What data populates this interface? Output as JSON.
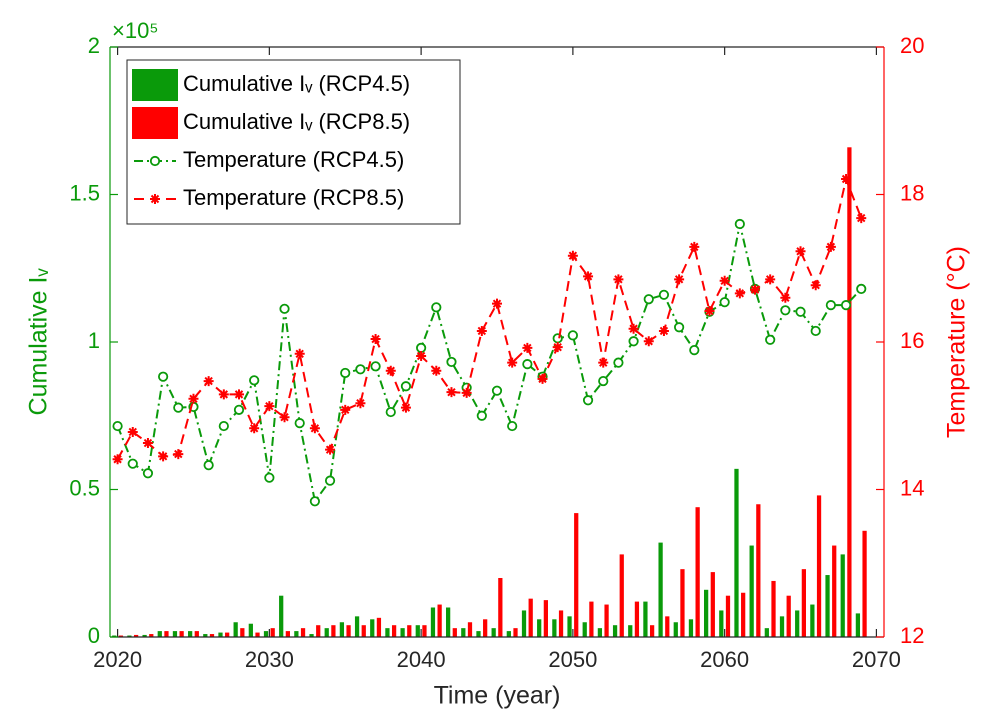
{
  "chart_data": {
    "type": "bar",
    "x_label": "Time (year)",
    "y_label": "Cumulative Iᵥ",
    "y2_label": "Temperature (°C)",
    "y_multiplier": "×10⁵",
    "xlim": [
      2019.5,
      2070.5
    ],
    "xticks": [
      2020,
      2030,
      2040,
      2050,
      2060,
      2070
    ],
    "ylim": [
      0,
      2
    ],
    "yticks": [
      0,
      0.5,
      1,
      1.5,
      2
    ],
    "y2lim": [
      12,
      20
    ],
    "y2ticks": [
      12,
      14,
      16,
      18,
      20
    ],
    "y_color": "#0a9a0a",
    "y2_color": "#ff0000",
    "legend": "upper left",
    "x": [
      2020,
      2021,
      2022,
      2023,
      2024,
      2025,
      2026,
      2027,
      2028,
      2029,
      2030,
      2031,
      2032,
      2033,
      2034,
      2035,
      2036,
      2037,
      2038,
      2039,
      2040,
      2041,
      2042,
      2043,
      2044,
      2045,
      2046,
      2047,
      2048,
      2049,
      2050,
      2051,
      2052,
      2053,
      2054,
      2055,
      2056,
      2057,
      2058,
      2059,
      2060,
      2061,
      2062,
      2063,
      2064,
      2065,
      2066,
      2067,
      2068,
      2069
    ],
    "series": [
      {
        "name": "Cumulative Iᵥ (RCP4.5)",
        "type": "bar",
        "color": "#0a9a0a",
        "values": [
          0.005,
          0.005,
          0.007,
          0.02,
          0.02,
          0.02,
          0.01,
          0.015,
          0.05,
          0.045,
          0.02,
          0.14,
          0.02,
          0.01,
          0.03,
          0.05,
          0.07,
          0.06,
          0.03,
          0.03,
          0.04,
          0.1,
          0.1,
          0.03,
          0.02,
          0.03,
          0.02,
          0.09,
          0.06,
          0.06,
          0.07,
          0.05,
          0.03,
          0.04,
          0.04,
          0.12,
          0.32,
          0.05,
          0.06,
          0.16,
          0.09,
          0.57,
          0.31,
          0.03,
          0.07,
          0.09,
          0.11,
          0.21,
          0.28,
          0.08
        ]
      },
      {
        "name": "Cumulative Iᵥ (RCP8.5)",
        "type": "bar",
        "color": "#ff0000",
        "values": [
          0.005,
          0.007,
          0.01,
          0.02,
          0.02,
          0.02,
          0.01,
          0.015,
          0.03,
          0.015,
          0.03,
          0.02,
          0.03,
          0.04,
          0.04,
          0.04,
          0.04,
          0.065,
          0.04,
          0.04,
          0.04,
          0.11,
          0.03,
          0.05,
          0.06,
          0.2,
          0.03,
          0.13,
          0.125,
          0.09,
          0.42,
          0.12,
          0.11,
          0.28,
          0.12,
          0.04,
          0.07,
          0.23,
          0.44,
          0.22,
          0.14,
          0.15,
          0.45,
          0.19,
          0.14,
          0.23,
          0.48,
          0.31,
          1.66,
          0.36
        ]
      },
      {
        "name": "Temperature (RCP4.5)",
        "type": "line",
        "axis": "y2",
        "color": "#0a9a0a",
        "linestyle": "dashdot",
        "marker": "circle",
        "values": [
          14.86,
          14.35,
          14.22,
          15.53,
          15.11,
          15.12,
          14.33,
          14.86,
          15.08,
          15.48,
          14.16,
          16.45,
          14.9,
          13.84,
          14.12,
          15.58,
          15.63,
          15.67,
          15.05,
          15.4,
          15.92,
          16.47,
          15.73,
          15.38,
          15.0,
          15.34,
          14.86,
          15.7,
          15.53,
          16.05,
          16.09,
          15.21,
          15.47,
          15.72,
          16.01,
          16.58,
          16.64,
          16.2,
          15.89,
          16.41,
          16.54,
          17.6,
          16.72,
          16.03,
          16.43,
          16.41,
          16.15,
          16.5,
          16.5,
          16.72
        ]
      },
      {
        "name": "Temperature (RCP8.5)",
        "type": "line",
        "axis": "y2",
        "color": "#ff0000",
        "linestyle": "dashed",
        "marker": "star",
        "values": [
          14.41,
          14.78,
          14.63,
          14.45,
          14.48,
          15.23,
          15.47,
          15.29,
          15.29,
          14.83,
          15.13,
          14.98,
          15.84,
          14.83,
          14.54,
          15.08,
          15.17,
          16.04,
          15.61,
          15.11,
          15.81,
          15.61,
          15.32,
          15.31,
          16.15,
          16.52,
          15.72,
          15.92,
          15.5,
          15.93,
          17.17,
          16.89,
          15.72,
          16.85,
          16.18,
          16.01,
          16.15,
          16.85,
          17.29,
          16.42,
          16.83,
          16.66,
          16.71,
          16.85,
          16.6,
          17.23,
          16.77,
          17.29,
          18.21,
          17.68
        ]
      }
    ]
  }
}
